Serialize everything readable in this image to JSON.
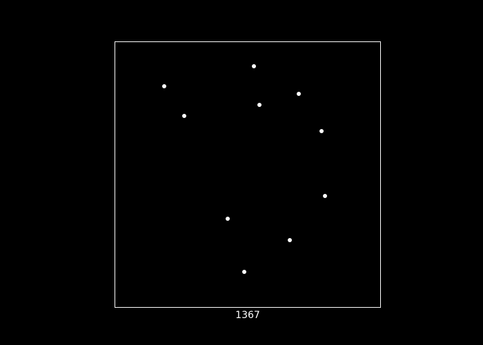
{
  "board": {
    "background_color": "#000000",
    "border_color": "#ffffff",
    "dot_color": "#ffffff",
    "dot_count": 10
  },
  "status": {
    "counter_value": "1367"
  }
}
